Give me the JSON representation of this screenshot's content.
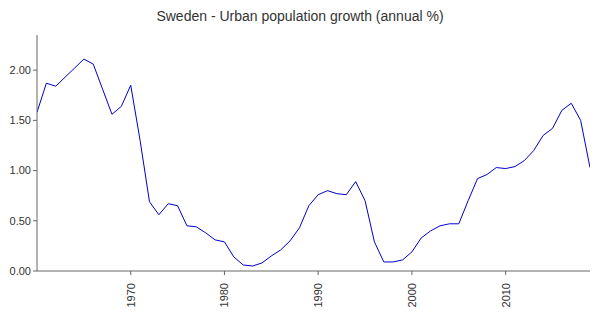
{
  "chart_data": {
    "type": "line",
    "title": "Sweden - Urban population growth (annual %)",
    "x": [
      1960,
      1961,
      1962,
      1963,
      1964,
      1965,
      1966,
      1967,
      1968,
      1969,
      1970,
      1971,
      1972,
      1973,
      1974,
      1975,
      1976,
      1977,
      1978,
      1979,
      1980,
      1981,
      1982,
      1983,
      1984,
      1985,
      1986,
      1987,
      1988,
      1989,
      1990,
      1991,
      1992,
      1993,
      1994,
      1995,
      1996,
      1997,
      1998,
      1999,
      2000,
      2001,
      2002,
      2003,
      2004,
      2005,
      2006,
      2007,
      2008,
      2009,
      2010,
      2011,
      2012,
      2013,
      2014,
      2015,
      2016,
      2017,
      2018,
      2019
    ],
    "values": [
      1.58,
      1.87,
      1.84,
      1.93,
      2.02,
      2.11,
      2.06,
      1.81,
      1.56,
      1.64,
      1.85,
      1.3,
      0.69,
      0.56,
      0.67,
      0.65,
      0.45,
      0.44,
      0.38,
      0.31,
      0.29,
      0.14,
      0.06,
      0.05,
      0.08,
      0.15,
      0.21,
      0.3,
      0.43,
      0.65,
      0.76,
      0.8,
      0.77,
      0.76,
      0.89,
      0.7,
      0.29,
      0.09,
      0.09,
      0.11,
      0.19,
      0.33,
      0.4,
      0.45,
      0.47,
      0.47,
      0.7,
      0.92,
      0.96,
      1.03,
      1.02,
      1.04,
      1.1,
      1.2,
      1.35,
      1.42,
      1.6,
      1.67,
      1.5,
      1.03
    ],
    "color": "#0000cc",
    "xlim": [
      1960,
      2019
    ],
    "xticks": [
      1970,
      1980,
      1990,
      2000,
      2010
    ],
    "ylim": [
      0,
      2.35
    ],
    "yticks": [
      {
        "value": 0,
        "label": "0.00"
      },
      {
        "value": 0.5,
        "label": "0.50"
      },
      {
        "value": 1,
        "label": "1.00"
      },
      {
        "value": 1.5,
        "label": "1.50"
      },
      {
        "value": 2,
        "label": "2.00"
      }
    ],
    "grid": false
  }
}
